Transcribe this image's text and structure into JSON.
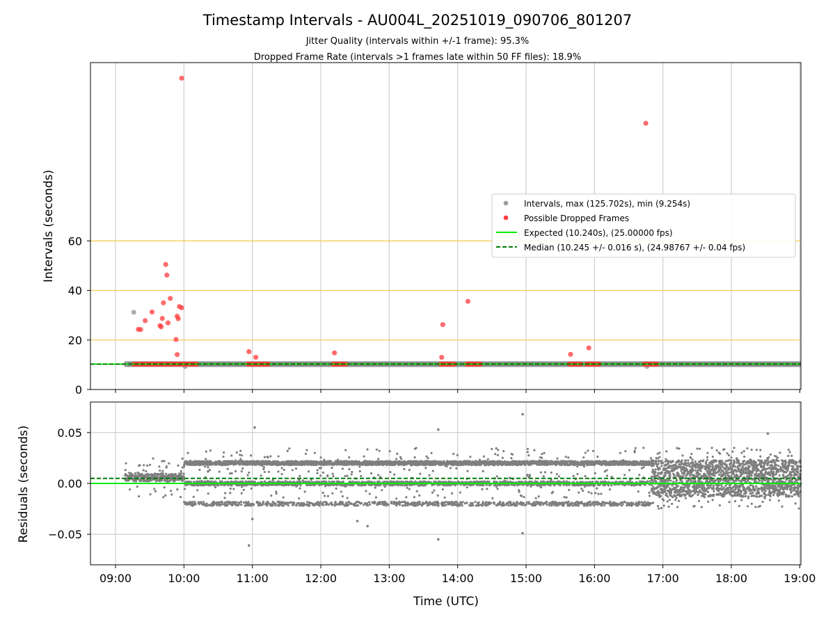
{
  "chart_data": [
    {
      "type": "scatter",
      "panel": "intervals",
      "title": "Timestamp Intervals - AU004L_20251019_090706_801207",
      "subtitles": [
        "Jitter Quality (intervals within +/-1 frame): 95.3%",
        "Dropped Frame Rate (intervals >1 frames late within 50 FF files): 18.9%"
      ],
      "ylabel": "Intervals (seconds)",
      "xlabel": "",
      "xlim": [
        "08:38",
        "19:01"
      ],
      "ylim": [
        0,
        132
      ],
      "yticks": [
        0,
        20,
        40,
        60
      ],
      "grid": true,
      "reference_lines": [
        {
          "y": 20,
          "color": "#f2c94c",
          "style": "solid"
        },
        {
          "y": 40,
          "color": "#f2c94c",
          "style": "solid"
        },
        {
          "y": 60,
          "color": "#f2c94c",
          "style": "solid"
        }
      ],
      "legend": {
        "placement": "center-right",
        "entries": [
          {
            "label": "Intervals, max (125.702s), min (9.254s)",
            "marker": "dot",
            "color": "#9e9e9e"
          },
          {
            "label": "Possible Dropped Frames",
            "marker": "dot",
            "color": "#ff3b3b"
          },
          {
            "label": "Expected (10.240s), (25.00000 fps)",
            "marker": "line",
            "color": "#00ee00",
            "style": "solid"
          },
          {
            "label": "Median (10.245 +/- 0.016 s), (24.98767 +/- 0.04 fps)",
            "marker": "line",
            "color": "#007a00",
            "style": "dashed"
          }
        ]
      },
      "series": [
        {
          "name": "Intervals, max (125.702s), min (9.254s)",
          "color": "#7f7f7f",
          "baseline_band": {
            "y": 10.245,
            "x_start": "09:08",
            "x_end": "19:01"
          },
          "points": [
            {
              "x": "09:16",
              "y": 31.2
            },
            {
              "x": "09:09",
              "y": 10.3
            },
            {
              "x": "10:01",
              "y": 9.3
            },
            {
              "x": "16:46",
              "y": 9.3
            }
          ]
        },
        {
          "name": "Possible Dropped Frames",
          "color": "#ff3b3b",
          "clusters": [
            {
              "x_start": "09:16",
              "x_end": "10:11",
              "y": 10.24
            },
            {
              "x_start": "10:56",
              "x_end": "11:14",
              "y": 10.24
            },
            {
              "x_start": "12:11",
              "x_end": "12:22",
              "y": 10.24
            },
            {
              "x_start": "13:45",
              "x_end": "13:57",
              "y": 10.24
            },
            {
              "x_start": "14:08",
              "x_end": "14:20",
              "y": 10.24
            },
            {
              "x_start": "15:38",
              "x_end": "15:48",
              "y": 10.24
            },
            {
              "x_start": "15:53",
              "x_end": "16:04",
              "y": 10.24
            },
            {
              "x_start": "16:44",
              "x_end": "16:55",
              "y": 10.24
            }
          ],
          "points": [
            {
              "x": "09:58",
              "y": 125.7
            },
            {
              "x": "16:45",
              "y": 107.5
            },
            {
              "x": "09:44",
              "y": 50.5
            },
            {
              "x": "09:45",
              "y": 46.2
            },
            {
              "x": "09:48",
              "y": 36.8
            },
            {
              "x": "09:42",
              "y": 35.0
            },
            {
              "x": "14:09",
              "y": 35.6
            },
            {
              "x": "09:56",
              "y": 33.5
            },
            {
              "x": "09:58",
              "y": 33.0
            },
            {
              "x": "09:32",
              "y": 31.3
            },
            {
              "x": "09:54",
              "y": 29.6
            },
            {
              "x": "09:55",
              "y": 28.6
            },
            {
              "x": "09:41",
              "y": 28.7
            },
            {
              "x": "09:26",
              "y": 27.8
            },
            {
              "x": "09:46",
              "y": 26.9
            },
            {
              "x": "13:47",
              "y": 26.2
            },
            {
              "x": "09:39",
              "y": 25.8
            },
            {
              "x": "09:40",
              "y": 25.3
            },
            {
              "x": "09:20",
              "y": 24.3
            },
            {
              "x": "09:22",
              "y": 24.2
            },
            {
              "x": "09:53",
              "y": 20.2
            },
            {
              "x": "15:55",
              "y": 16.8
            },
            {
              "x": "10:57",
              "y": 15.3
            },
            {
              "x": "12:12",
              "y": 14.8
            },
            {
              "x": "15:39",
              "y": 14.2
            },
            {
              "x": "09:54",
              "y": 14.1
            },
            {
              "x": "11:03",
              "y": 13.0
            },
            {
              "x": "13:46",
              "y": 13.0
            }
          ]
        },
        {
          "name": "Expected (10.240s), (25.00000 fps)",
          "color": "#00ee00",
          "y": 10.24
        },
        {
          "name": "Median (10.245 +/- 0.016 s), (24.98767 +/- 0.04 fps)",
          "color": "#007a00",
          "y": 10.245
        }
      ]
    },
    {
      "type": "scatter",
      "panel": "residuals",
      "title": "",
      "ylabel": "Residuals (seconds)",
      "xlabel": "Time (UTC)",
      "xlim": [
        "08:38",
        "19:01"
      ],
      "ylim": [
        -0.08,
        0.08
      ],
      "yticks": [
        -0.05,
        0.0,
        0.05
      ],
      "ytick_labels": [
        "−0.05",
        "0.00",
        "0.05"
      ],
      "xticks": [
        "09:00",
        "10:00",
        "11:00",
        "12:00",
        "13:00",
        "14:00",
        "15:00",
        "16:00",
        "17:00",
        "18:00",
        "19:00"
      ],
      "grid": true,
      "series": [
        {
          "name": "",
          "color": "#7f7f7f",
          "bands": [
            {
              "x_start": "09:08",
              "x_end": "10:00",
              "y_center": 0.006,
              "spread": 0.004,
              "density": 6,
              "outer_spread": 0.02
            },
            {
              "x_start": "10:00",
              "x_end": "16:50",
              "levels": [
                0.02,
                0.0,
                -0.02
              ],
              "spread": 0.002,
              "density": 12,
              "outer_spread": 0.025
            },
            {
              "x_start": "16:50",
              "x_end": "19:01",
              "y_center": 0.005,
              "spread": 0.018,
              "density": 14,
              "outer_spread": 0.03
            }
          ],
          "outliers": [
            {
              "x": "11:02",
              "y": 0.055
            },
            {
              "x": "13:43",
              "y": 0.053
            },
            {
              "x": "14:57",
              "y": 0.068
            },
            {
              "x": "10:57",
              "y": -0.061
            },
            {
              "x": "13:43",
              "y": -0.055
            },
            {
              "x": "14:57",
              "y": -0.049
            },
            {
              "x": "18:32",
              "y": 0.049
            },
            {
              "x": "11:00",
              "y": -0.035
            },
            {
              "x": "12:32",
              "y": -0.037
            },
            {
              "x": "12:41",
              "y": -0.042
            }
          ]
        },
        {
          "name": "Expected",
          "color": "#00ee00",
          "y": 0.0
        },
        {
          "name": "Median",
          "color": "#007a00",
          "y": 0.005
        }
      ]
    }
  ]
}
